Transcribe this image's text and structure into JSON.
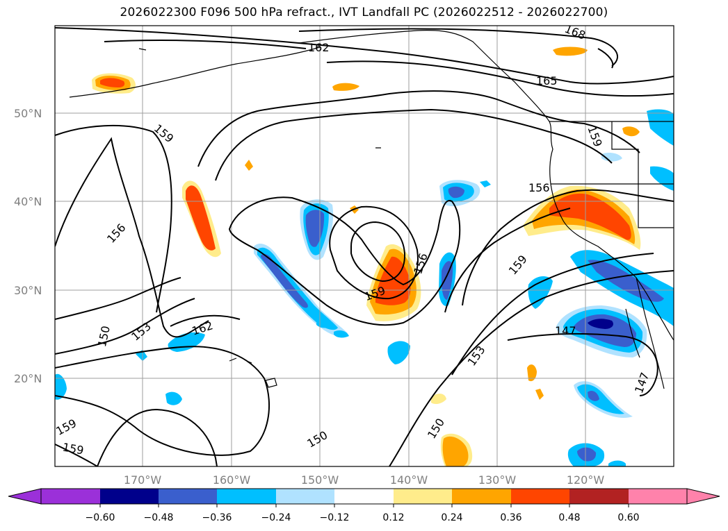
{
  "title": "2026022300 F096 500 hPa refract., IVT Landfall PC (2026022512 - 2026022700)",
  "map": {
    "lat_labels": [
      "50°N",
      "40°N",
      "30°N",
      "20°N"
    ],
    "lon_labels": [
      "170°W",
      "160°W",
      "150°W",
      "140°W",
      "130°W",
      "120°W"
    ],
    "contour_labels": [
      "168",
      "165",
      "162",
      "159",
      "156",
      "156",
      "156",
      "159",
      "159",
      "159",
      "153",
      "150",
      "162",
      "153",
      "150",
      "150",
      "147",
      "147",
      "159",
      "159"
    ],
    "grid": true,
    "contour_color": "#000000"
  },
  "colorbar": {
    "ticks": [
      "−0.60",
      "−0.48",
      "−0.36",
      "−0.24",
      "−0.12",
      "0.12",
      "0.24",
      "0.36",
      "0.48",
      "0.60"
    ],
    "colors": [
      "#9b30d9",
      "#00008b",
      "#3a5fcd",
      "#00bfff",
      "#b0e2ff",
      "#ffffff",
      "#ffec8b",
      "#ffa500",
      "#ff4500",
      "#b22222",
      "#ff82ab"
    ]
  }
}
